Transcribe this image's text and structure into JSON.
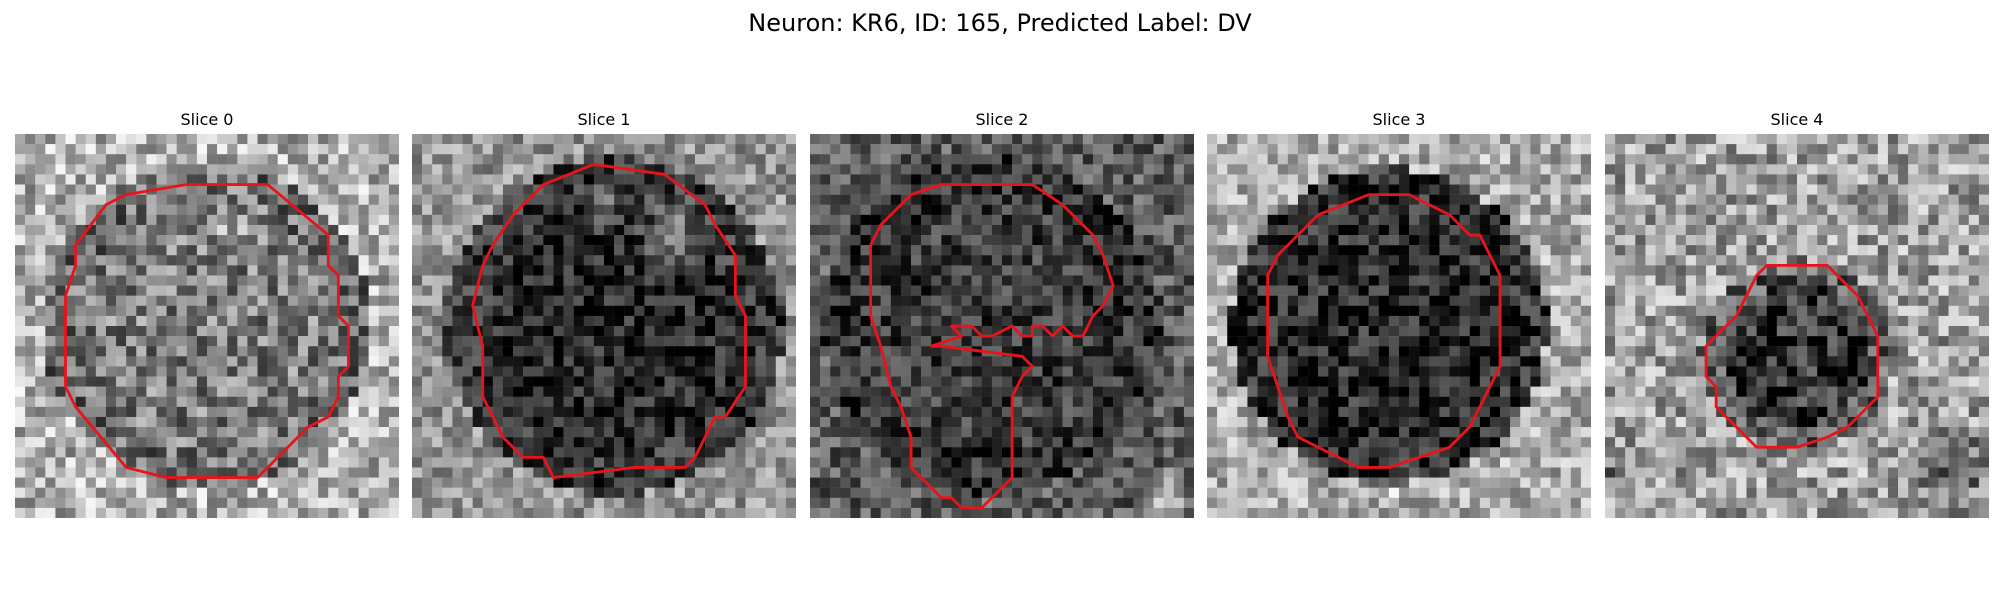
{
  "figure": {
    "title": "Neuron: KR6, ID: 165, Predicted Label: DV"
  },
  "outline_color": "#e8141c",
  "colormap": "gray",
  "slices": [
    {
      "title": "Slice 0",
      "image_description": "Noisy grayscale microscopy crop; mid-gray cell body surrounded by lighter speckled background.",
      "outline_points": [
        [
          17,
          5
        ],
        [
          25,
          5
        ],
        [
          31,
          10
        ],
        [
          31,
          13
        ],
        [
          32,
          14
        ],
        [
          32,
          18
        ],
        [
          33,
          19
        ],
        [
          33,
          23
        ],
        [
          32,
          24
        ],
        [
          32,
          26
        ],
        [
          31,
          28
        ],
        [
          29,
          29
        ],
        [
          24,
          34
        ],
        [
          15,
          34
        ],
        [
          11,
          33
        ],
        [
          6,
          27
        ],
        [
          5,
          25
        ],
        [
          5,
          22
        ],
        [
          5,
          16
        ],
        [
          6,
          13
        ],
        [
          6,
          11
        ],
        [
          9,
          7
        ],
        [
          11,
          6
        ]
      ]
    },
    {
      "title": "Slice 1",
      "image_description": "Dark cell body with a bright crescent near its upper-right rim on a textured background.",
      "outline_points": [
        [
          18,
          3
        ],
        [
          25,
          4
        ],
        [
          29,
          7
        ],
        [
          30,
          9
        ],
        [
          32,
          12
        ],
        [
          32,
          16
        ],
        [
          33,
          18
        ],
        [
          33,
          25
        ],
        [
          31,
          28
        ],
        [
          30,
          28
        ],
        [
          28,
          32
        ],
        [
          27,
          33
        ],
        [
          22,
          33
        ],
        [
          14,
          34
        ],
        [
          13,
          32
        ],
        [
          11,
          32
        ],
        [
          9,
          30
        ],
        [
          8,
          28
        ],
        [
          7,
          26
        ],
        [
          7,
          21
        ],
        [
          6,
          17
        ],
        [
          7,
          13
        ],
        [
          8,
          11
        ],
        [
          10,
          8
        ],
        [
          11,
          7
        ],
        [
          13,
          5
        ]
      ]
    },
    {
      "title": "Slice 2",
      "image_description": "Dark textured field with a faint cell body; irregular segmentation with a notch on the right side.",
      "outline_points": [
        [
          13,
          5
        ],
        [
          17,
          5
        ],
        [
          22,
          5
        ],
        [
          25,
          7
        ],
        [
          28,
          10
        ],
        [
          29,
          12
        ],
        [
          30,
          15
        ],
        [
          29,
          17
        ],
        [
          28,
          18
        ],
        [
          27,
          20
        ],
        [
          26,
          20
        ],
        [
          25,
          19
        ],
        [
          24,
          20
        ],
        [
          23,
          19
        ],
        [
          22,
          19
        ],
        [
          22,
          20
        ],
        [
          21,
          20
        ],
        [
          20,
          19
        ],
        [
          18,
          20
        ],
        [
          17,
          20
        ],
        [
          16,
          19
        ],
        [
          14,
          19
        ],
        [
          15,
          20
        ],
        [
          12,
          21
        ],
        [
          13,
          21
        ],
        [
          21,
          22
        ],
        [
          22,
          23
        ],
        [
          21,
          24
        ],
        [
          20,
          26
        ],
        [
          20,
          30
        ],
        [
          20,
          34
        ],
        [
          19,
          35
        ],
        [
          18,
          36
        ],
        [
          17,
          37
        ],
        [
          15,
          37
        ],
        [
          14,
          36
        ],
        [
          13,
          36
        ],
        [
          12,
          35
        ],
        [
          11,
          34
        ],
        [
          10,
          33
        ],
        [
          10,
          30
        ],
        [
          9,
          27
        ],
        [
          8,
          25
        ],
        [
          7,
          21
        ],
        [
          6,
          18
        ],
        [
          6,
          15
        ],
        [
          6,
          11
        ],
        [
          7,
          9
        ],
        [
          8,
          8
        ],
        [
          10,
          6
        ]
      ]
    },
    {
      "title": "Slice 3",
      "image_description": "Dark round cell body on a bright speckled background.",
      "outline_points": [
        [
          16,
          6
        ],
        [
          20,
          6
        ],
        [
          24,
          8
        ],
        [
          26,
          10
        ],
        [
          27,
          10
        ],
        [
          28,
          12
        ],
        [
          29,
          14
        ],
        [
          29,
          18
        ],
        [
          29,
          23
        ],
        [
          28,
          25
        ],
        [
          27,
          27
        ],
        [
          26,
          29
        ],
        [
          25,
          30
        ],
        [
          24,
          31
        ],
        [
          21,
          32
        ],
        [
          18,
          33
        ],
        [
          15,
          33
        ],
        [
          13,
          32
        ],
        [
          11,
          31
        ],
        [
          9,
          30
        ],
        [
          8,
          28
        ],
        [
          7,
          25
        ],
        [
          6,
          22
        ],
        [
          6,
          18
        ],
        [
          6,
          14
        ],
        [
          7,
          12
        ],
        [
          9,
          10
        ],
        [
          11,
          8
        ]
      ]
    },
    {
      "title": "Slice 4",
      "image_description": "Small dark cell body near the centre of a bright speckled field; dark band in the lower-right corner.",
      "outline_points": [
        [
          16,
          13
        ],
        [
          22,
          13
        ],
        [
          24,
          15
        ],
        [
          25,
          16
        ],
        [
          26,
          18
        ],
        [
          27,
          20
        ],
        [
          27,
          23
        ],
        [
          27,
          26
        ],
        [
          26,
          27
        ],
        [
          25,
          28
        ],
        [
          24,
          29
        ],
        [
          22,
          30
        ],
        [
          19,
          31
        ],
        [
          15,
          31
        ],
        [
          14,
          30
        ],
        [
          13,
          29
        ],
        [
          12,
          28
        ],
        [
          11,
          27
        ],
        [
          11,
          25
        ],
        [
          10,
          24
        ],
        [
          10,
          21
        ],
        [
          11,
          20
        ],
        [
          12,
          19
        ],
        [
          13,
          18
        ],
        [
          14,
          16
        ],
        [
          15,
          14
        ]
      ]
    }
  ]
}
